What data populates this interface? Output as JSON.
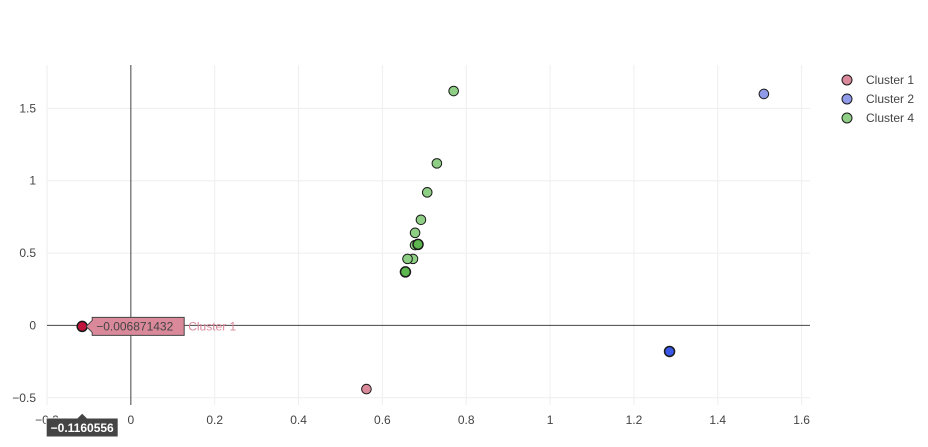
{
  "chart_data": {
    "type": "scatter",
    "xlim": [
      -0.2,
      1.62
    ],
    "ylim": [
      -0.55,
      1.8
    ],
    "x_ticks": [
      {
        "value": -0.2,
        "label": "−0.2"
      },
      {
        "value": 0,
        "label": "0"
      },
      {
        "value": 0.2,
        "label": "0.2"
      },
      {
        "value": 0.4,
        "label": "0.4"
      },
      {
        "value": 0.6,
        "label": "0.6"
      },
      {
        "value": 0.8,
        "label": "0.8"
      },
      {
        "value": 1,
        "label": "1"
      },
      {
        "value": 1.2,
        "label": "1.2"
      },
      {
        "value": 1.4,
        "label": "1.4"
      },
      {
        "value": 1.6,
        "label": "1.6"
      }
    ],
    "y_ticks": [
      {
        "value": -0.5,
        "label": "−0.5"
      },
      {
        "value": 0,
        "label": "0"
      },
      {
        "value": 0.5,
        "label": "0.5"
      },
      {
        "value": 1,
        "label": "1"
      },
      {
        "value": 1.5,
        "label": "1.5"
      }
    ],
    "grid": true,
    "legend_position": "top-right",
    "series": [
      {
        "name": "Cluster 1",
        "color": "#d9899a",
        "highlight_color": "#c0143c",
        "points": [
          {
            "x": -0.1160556,
            "y": -0.006871432,
            "highlighted": true
          },
          {
            "x": 0.562,
            "y": -0.44
          }
        ]
      },
      {
        "name": "Cluster 2",
        "color": "#8f9be8",
        "highlight_color": "#3a57e8",
        "points": [
          {
            "x": 1.51,
            "y": 1.6
          },
          {
            "x": 1.285,
            "y": -0.18,
            "highlighted": true
          }
        ]
      },
      {
        "name": "Cluster 4",
        "color": "#8fcf85",
        "highlight_color": "#5cb84e",
        "points": [
          {
            "x": 0.77,
            "y": 1.62
          },
          {
            "x": 0.73,
            "y": 1.12
          },
          {
            "x": 0.707,
            "y": 0.92
          },
          {
            "x": 0.692,
            "y": 0.73
          },
          {
            "x": 0.678,
            "y": 0.64
          },
          {
            "x": 0.678,
            "y": 0.555
          },
          {
            "x": 0.685,
            "y": 0.56,
            "highlighted": true
          },
          {
            "x": 0.673,
            "y": 0.46
          },
          {
            "x": 0.66,
            "y": 0.46
          },
          {
            "x": 0.655,
            "y": 0.37,
            "highlighted": true
          }
        ]
      }
    ],
    "hover": {
      "y_label": "−0.006871432",
      "series_label": "Cluster 1",
      "x_label": "−0.1160556",
      "point_x": -0.1160556,
      "point_y": -0.006871432
    }
  }
}
